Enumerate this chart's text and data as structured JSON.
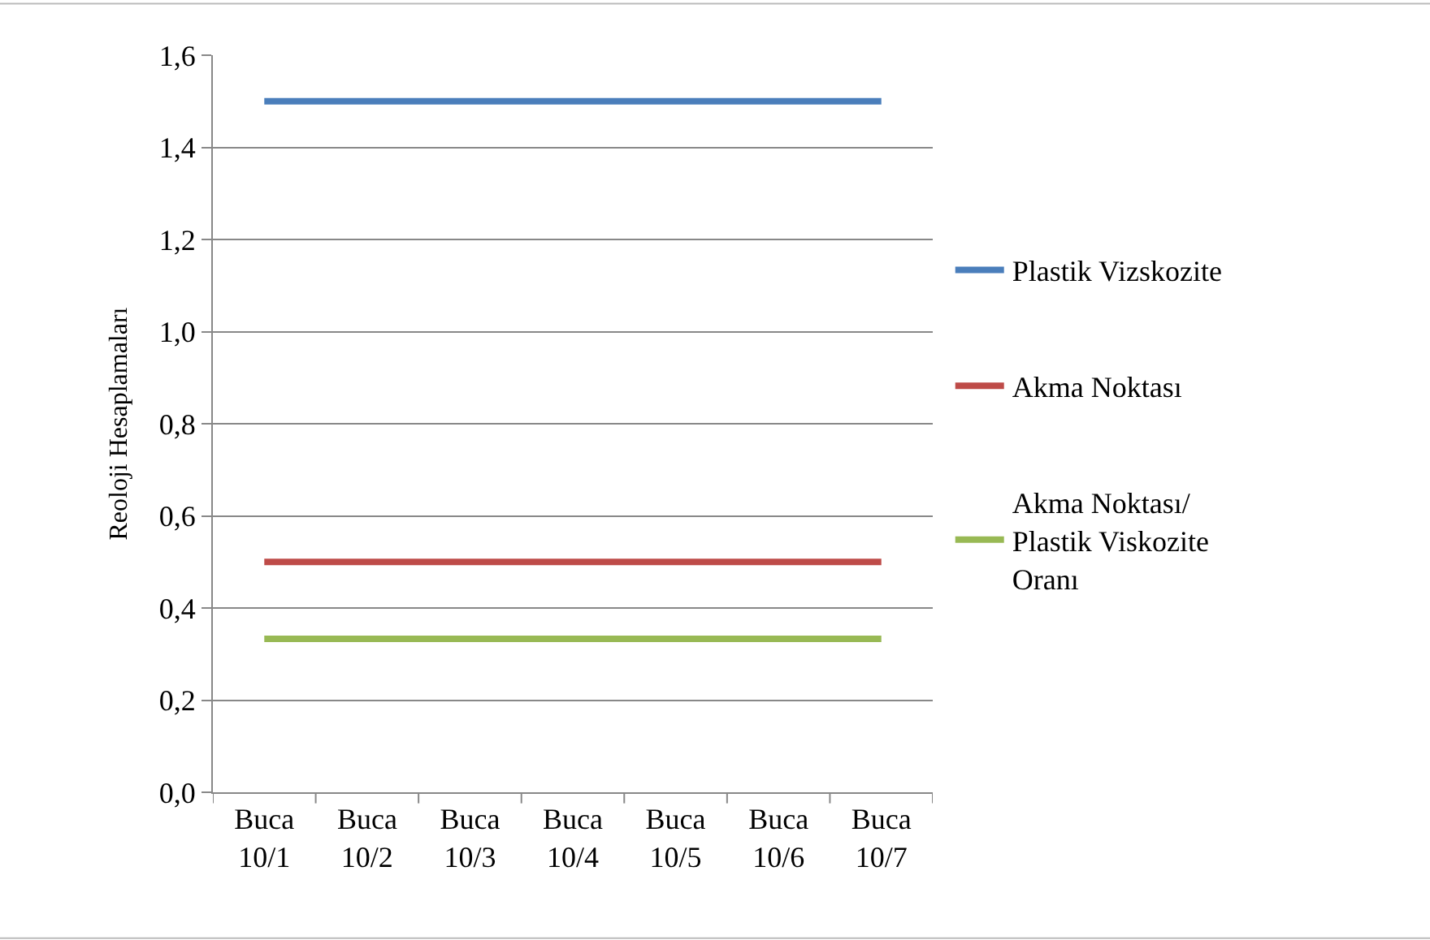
{
  "chart_data": {
    "type": "line",
    "ylabel": "Reoloji Hesaplamaları",
    "categories": [
      "Buca 10/1",
      "Buca 10/2",
      "Buca 10/3",
      "Buca 10/4",
      "Buca 10/5",
      "Buca 10/6",
      "Buca 10/7"
    ],
    "series": [
      {
        "name": "Plastik Vizskozite",
        "color": "#4a7ebb",
        "values": [
          1.5,
          1.5,
          1.5,
          1.5,
          1.5,
          1.5,
          1.5
        ]
      },
      {
        "name": "Akma Noktası",
        "color": "#be4b48",
        "values": [
          0.5,
          0.5,
          0.5,
          0.5,
          0.5,
          0.5,
          0.5
        ]
      },
      {
        "name": "Akma Noktası/ Plastik Viskozite Oranı",
        "color": "#98b954",
        "values": [
          0.333,
          0.333,
          0.333,
          0.333,
          0.333,
          0.333,
          0.333
        ]
      }
    ],
    "ylim": [
      0,
      1.6
    ],
    "yticks": [
      {
        "value": 0,
        "label": "0,0"
      },
      {
        "value": 0.2,
        "label": "0,2"
      },
      {
        "value": 0.4,
        "label": "0,4"
      },
      {
        "value": 0.6,
        "label": "0,6"
      },
      {
        "value": 0.8,
        "label": "0,8"
      },
      {
        "value": 1.0,
        "label": "1,0"
      },
      {
        "value": 1.2,
        "label": "1,2"
      },
      {
        "value": 1.4,
        "label": "1,4"
      },
      {
        "value": 1.6,
        "label": "1,6"
      }
    ],
    "grid": "y",
    "legend": "right",
    "marker": "none",
    "line_style": "solid"
  }
}
